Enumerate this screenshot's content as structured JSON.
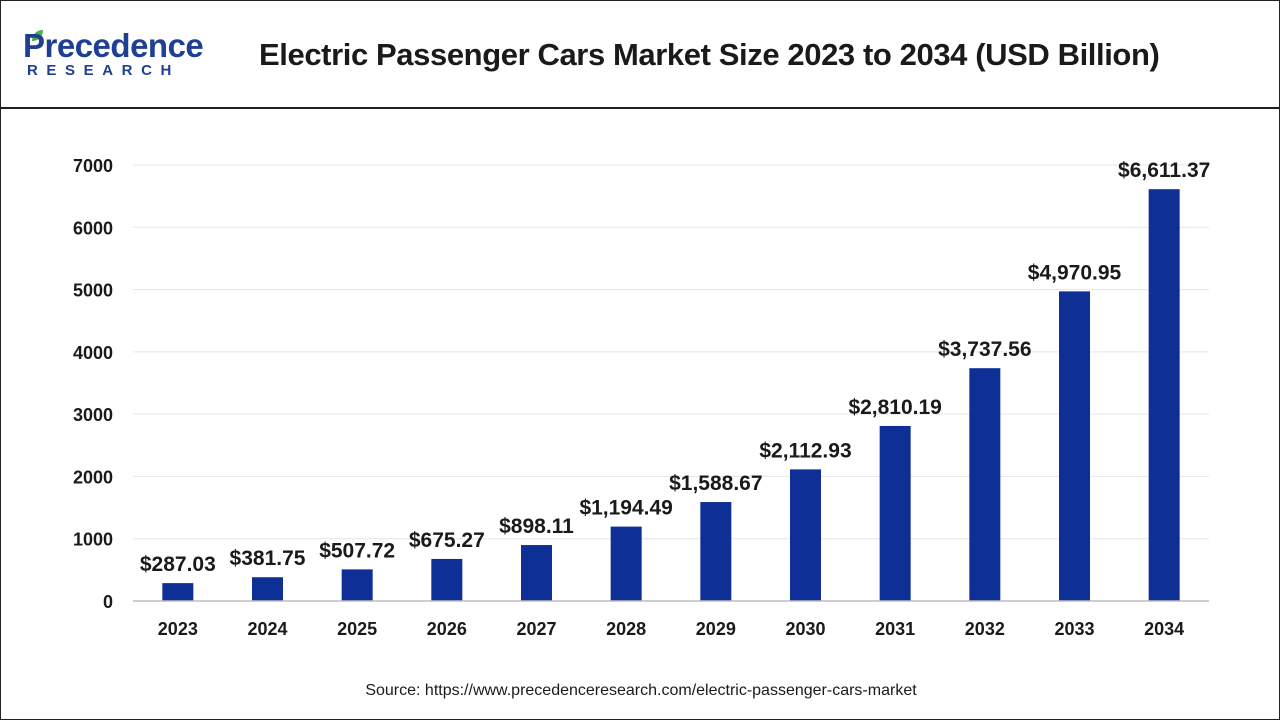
{
  "header": {
    "logo_main": "Precedence",
    "logo_sub": "RESEARCH",
    "title": "Electric Passenger Cars Market Size 2023 to 2034 (USD Billion)"
  },
  "footer": {
    "source": "Source: https://www.precedenceresearch.com/electric-passenger-cars-market"
  },
  "colors": {
    "bar": "#0d2f96",
    "brand": "#1f3f95",
    "leaf": "#4caf50"
  },
  "icons": {
    "logo_leaf": "leaf-icon"
  },
  "chart_data": {
    "type": "bar",
    "title": "Electric Passenger Cars Market Size 2023 to 2034 (USD Billion)",
    "xlabel": "",
    "ylabel": "",
    "categories": [
      "2023",
      "2024",
      "2025",
      "2026",
      "2027",
      "2028",
      "2029",
      "2030",
      "2031",
      "2032",
      "2033",
      "2034"
    ],
    "values": [
      287.03,
      381.75,
      507.72,
      675.27,
      898.11,
      1194.49,
      1588.67,
      2112.93,
      2810.19,
      3737.56,
      4970.95,
      6611.37
    ],
    "data_labels": [
      "$287.03",
      "$381.75",
      "$507.72",
      "$675.27",
      "$898.11",
      "$1,194.49",
      "$1,588.67",
      "$2,112.93",
      "$2,810.19",
      "$3,737.56",
      "$4,970.95",
      "$6,611.37"
    ],
    "yticks": [
      "0",
      "1000",
      "2000",
      "3000",
      "4000",
      "5000",
      "6000",
      "7000"
    ],
    "ylim": [
      0,
      7000
    ],
    "grid": true,
    "legend": "none"
  }
}
